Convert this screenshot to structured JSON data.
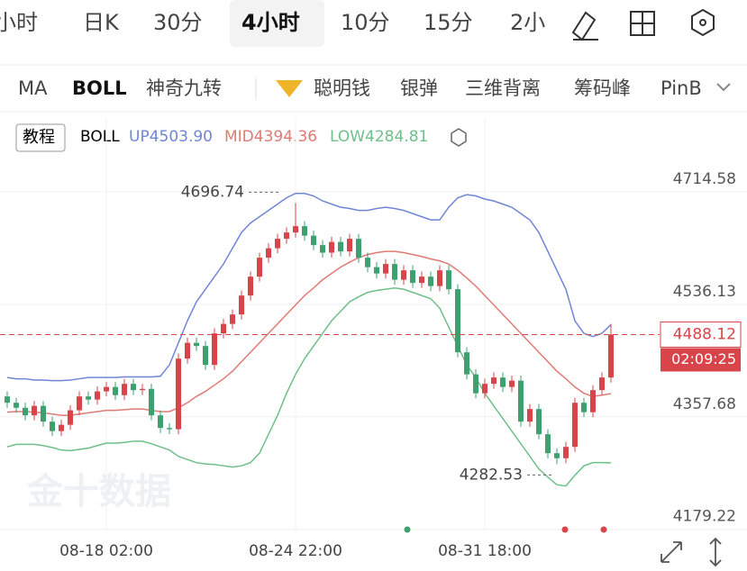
{
  "tabs": [
    "小时",
    "日K",
    "30分",
    "4小时",
    "10分",
    "15分",
    "2小"
  ],
  "indicators": [
    "MA",
    "BOLL",
    "神奇九转",
    "聪明钱",
    "银弹",
    "三维背离",
    "筹码峰",
    "PinB"
  ],
  "tutorial": "教程",
  "legend": {
    "name": "BOLL",
    "items": [
      "UP4503.90",
      "MID4394.36",
      "LOW4284.81"
    ]
  },
  "watermark": "金十数据",
  "countdown": "02:09:25",
  "chart_data": {
    "type": "candlestick",
    "x": [
      null,
      null,
      null,
      null,
      null,
      null,
      null,
      null,
      null,
      null,
      null,
      "08-18 02:00",
      null,
      null,
      null,
      null,
      null,
      null,
      null,
      null,
      null,
      null,
      null,
      null,
      null,
      null,
      null,
      null,
      null,
      null,
      null,
      null,
      "08-24 22:00",
      null,
      null,
      null,
      null,
      null,
      null,
      null,
      null,
      null,
      null,
      null,
      null,
      null,
      null,
      null,
      null,
      null,
      null,
      null,
      null,
      "08-31 18:00",
      null,
      null,
      null,
      null,
      null,
      null,
      null,
      null,
      null,
      null,
      null,
      null,
      null,
      null
    ],
    "open": [
      4390,
      4380,
      4372,
      4360,
      4375,
      4350,
      4335,
      4345,
      4368,
      4390,
      4385,
      4398,
      4405,
      4392,
      4410,
      4400,
      4402,
      4360,
      4340,
      4338,
      4450,
      4475,
      4470,
      4440,
      4490,
      4505,
      4520,
      4550,
      4580,
      4610,
      4625,
      4640,
      4650,
      4660,
      4645,
      4630,
      4618,
      4635,
      4620,
      4640,
      4610,
      4595,
      4585,
      4600,
      4575,
      4590,
      4570,
      4580,
      4565,
      4590,
      4560,
      4460,
      4425,
      4395,
      4410,
      4420,
      4405,
      4415,
      4350,
      4370,
      4330,
      4300,
      4292,
      4310,
      4380,
      4365,
      4400,
      4420
    ],
    "high": [
      4398,
      4388,
      4380,
      4383,
      4383,
      4358,
      4353,
      4376,
      4398,
      4398,
      4406,
      4413,
      4413,
      4418,
      4418,
      4410,
      4410,
      4368,
      4348,
      4458,
      4483,
      4483,
      4478,
      4498,
      4513,
      4528,
      4558,
      4588,
      4618,
      4633,
      4648,
      4658,
      4696.74,
      4668,
      4653,
      4638,
      4643,
      4643,
      4648,
      4648,
      4618,
      4603,
      4608,
      4608,
      4598,
      4598,
      4588,
      4588,
      4598,
      4598,
      4568,
      4468,
      4433,
      4418,
      4428,
      4428,
      4423,
      4423,
      4378,
      4378,
      4338,
      4308,
      4318,
      4388,
      4388,
      4408,
      4428,
      4505
    ],
    "low": [
      4372,
      4364,
      4352,
      4352,
      4342,
      4327,
      4327,
      4337,
      4360,
      4377,
      4377,
      4390,
      4384,
      4384,
      4392,
      4392,
      4352,
      4332,
      4330,
      4330,
      4442,
      4462,
      4432,
      4432,
      4482,
      4497,
      4512,
      4542,
      4572,
      4602,
      4617,
      4632,
      4642,
      4637,
      4622,
      4610,
      4610,
      4612,
      4612,
      4602,
      4587,
      4577,
      4577,
      4567,
      4567,
      4562,
      4562,
      4557,
      4557,
      4552,
      4452,
      4417,
      4387,
      4387,
      4402,
      4397,
      4397,
      4342,
      4342,
      4322,
      4292,
      4282.53,
      4284,
      4302,
      4357,
      4357,
      4392,
      4412
    ],
    "close": [
      4380,
      4372,
      4360,
      4375,
      4350,
      4335,
      4345,
      4368,
      4390,
      4385,
      4398,
      4405,
      4392,
      4410,
      4400,
      4402,
      4360,
      4340,
      4338,
      4450,
      4475,
      4470,
      4440,
      4490,
      4505,
      4520,
      4550,
      4580,
      4610,
      4625,
      4640,
      4650,
      4660,
      4645,
      4630,
      4618,
      4635,
      4620,
      4640,
      4610,
      4595,
      4585,
      4600,
      4575,
      4590,
      4570,
      4580,
      4565,
      4590,
      4560,
      4460,
      4425,
      4395,
      4410,
      4420,
      4405,
      4415,
      4350,
      4370,
      4330,
      4300,
      4292,
      4310,
      4380,
      4365,
      4400,
      4420,
      4488.12
    ],
    "up_color": "#d9434a",
    "down_color": "#3ea06f",
    "series": [
      {
        "name": "UP",
        "color": "#6f86d6",
        "values": [
          4420,
          4418,
          4418,
          4416,
          4416,
          4415,
          4415,
          4416,
          4418,
          4420,
          4420,
          4420,
          4420,
          4421,
          4421,
          4421,
          4421,
          4422,
          4440,
          4475,
          4510,
          4540,
          4560,
          4580,
          4600,
          4625,
          4650,
          4665,
          4675,
          4685,
          4695,
          4705,
          4712,
          4712,
          4708,
          4700,
          4695,
          4690,
          4688,
          4685,
          4685,
          4688,
          4690,
          4688,
          4685,
          4680,
          4675,
          4670,
          4670,
          4690,
          4705,
          4710,
          4708,
          4703,
          4700,
          4695,
          4690,
          4680,
          4670,
          4650,
          4620,
          4590,
          4560,
          4510,
          4490,
          4485,
          4490,
          4503.9
        ]
      },
      {
        "name": "MID",
        "color": "#e07a74",
        "values": [
          4365,
          4366,
          4366,
          4365,
          4364,
          4362,
          4360,
          4360,
          4362,
          4364,
          4366,
          4368,
          4368,
          4369,
          4370,
          4370,
          4368,
          4366,
          4366,
          4372,
          4380,
          4390,
          4398,
          4408,
          4418,
          4430,
          4445,
          4460,
          4475,
          4490,
          4505,
          4520,
          4535,
          4550,
          4562,
          4575,
          4585,
          4595,
          4603,
          4610,
          4615,
          4618,
          4620,
          4620,
          4618,
          4615,
          4612,
          4608,
          4605,
          4600,
          4590,
          4578,
          4565,
          4550,
          4535,
          4520,
          4505,
          4490,
          4475,
          4460,
          4445,
          4430,
          4418,
          4405,
          4395,
          4390,
          4392,
          4394.36
        ]
      },
      {
        "name": "LOW",
        "color": "#6fbf8a",
        "values": [
          4310,
          4314,
          4314,
          4314,
          4312,
          4309,
          4305,
          4304,
          4306,
          4308,
          4312,
          4316,
          4316,
          4317,
          4319,
          4319,
          4315,
          4310,
          4305,
          4295,
          4290,
          4285,
          4283,
          4282,
          4280,
          4278,
          4280,
          4285,
          4300,
          4330,
          4360,
          4395,
          4425,
          4450,
          4470,
          4490,
          4510,
          4525,
          4540,
          4548,
          4555,
          4558,
          4560,
          4562,
          4560,
          4555,
          4550,
          4545,
          4530,
          4500,
          4470,
          4440,
          4420,
          4395,
          4375,
          4355,
          4335,
          4315,
          4295,
          4275,
          4262,
          4250,
          4248,
          4265,
          4280,
          4285,
          4285,
          4284.81
        ]
      }
    ],
    "ylim": [
      4176,
      4833
    ],
    "yticks": [
      4714.58,
      4536.13,
      4357.68,
      4179.22
    ],
    "grid": true
  }
}
